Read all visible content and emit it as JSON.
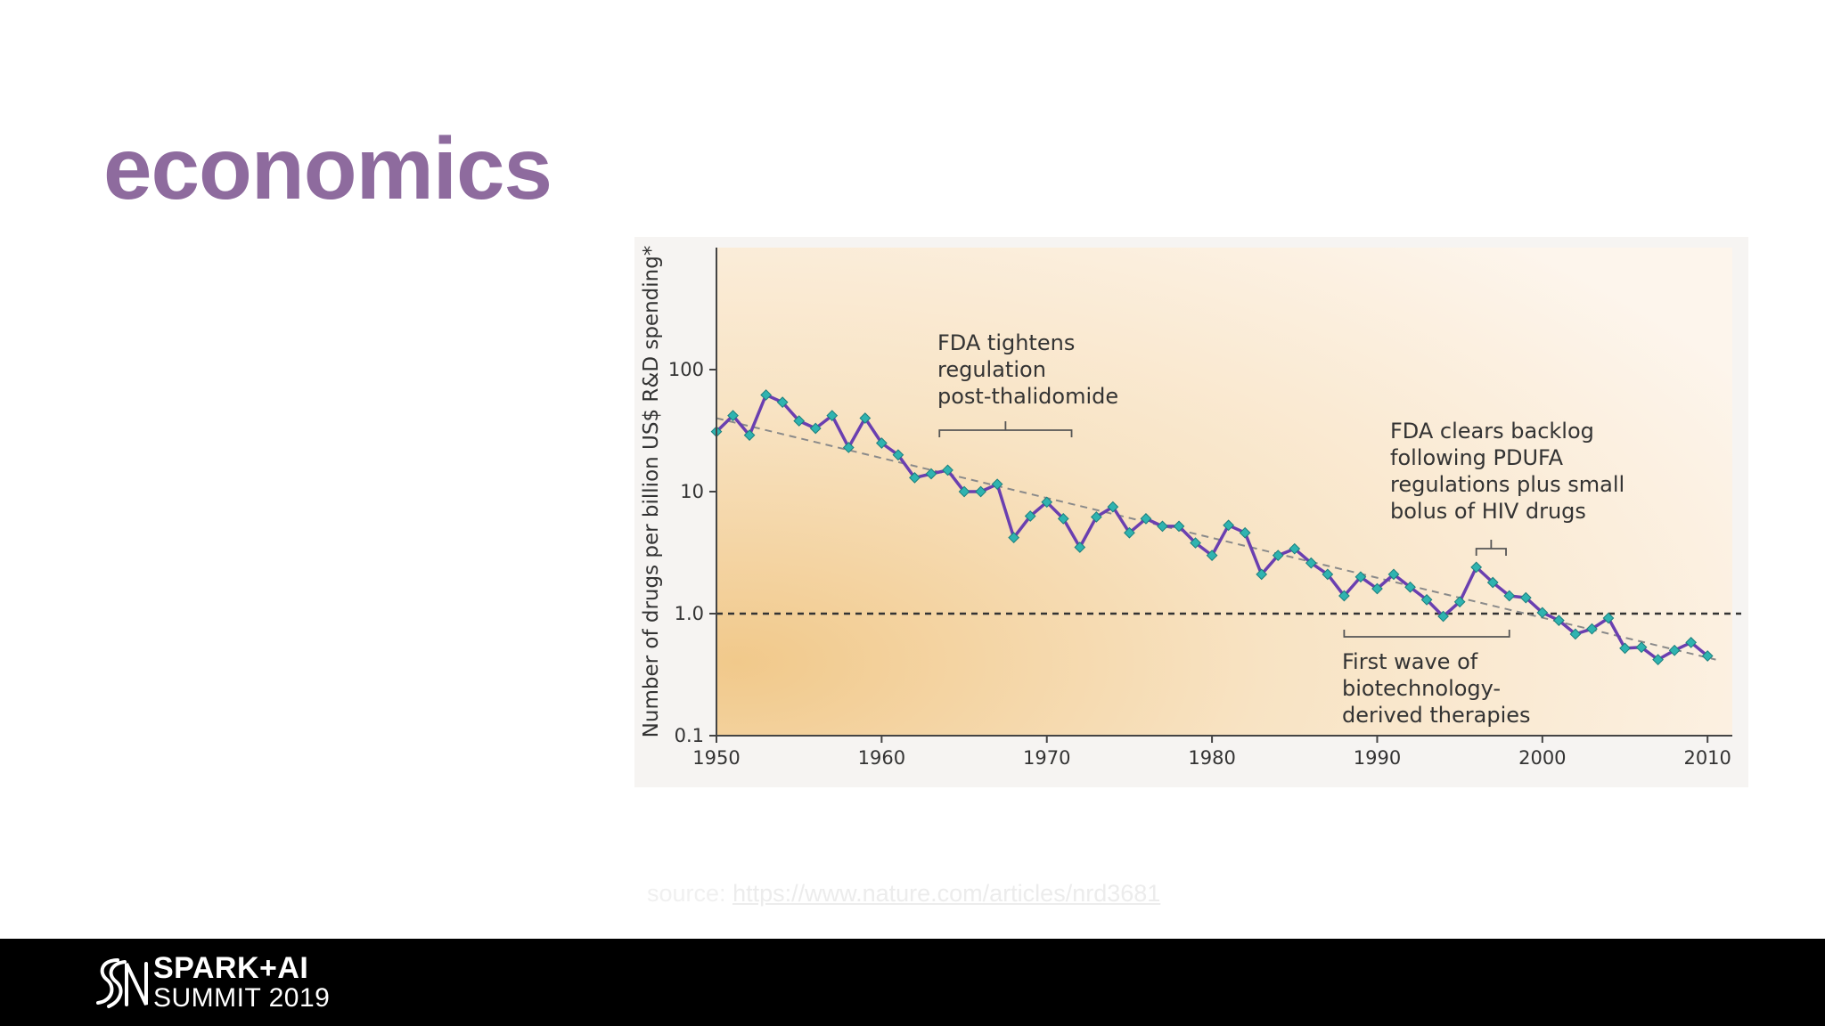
{
  "slide": {
    "title": "economics",
    "source_prefix": "source:",
    "source_url": "https://www.nature.com/articles/nrd3681"
  },
  "footer": {
    "logo_line1": "SPARK+AI",
    "logo_line2": "SUMMIT 2019"
  },
  "colors": {
    "title": "#8e6b9e",
    "series_line": "#6a3fb0",
    "marker": "#2fb3b0",
    "footer_bg": "#000000"
  },
  "chart_data": {
    "type": "line",
    "title": "",
    "xlabel": "",
    "ylabel": "Number of drugs per billion US$ R&D spending*",
    "yscale": "log",
    "ylim": [
      0.1,
      1000
    ],
    "xlim": [
      1950,
      2011.5
    ],
    "x_ticks": [
      "1950",
      "1960",
      "1970",
      "1980",
      "1990",
      "2000",
      "2010"
    ],
    "y_ticks": [
      "0.1",
      "1.0",
      "10",
      "100"
    ],
    "grid": false,
    "reference_line": {
      "y": 1.0,
      "style": "dashed"
    },
    "trend_line": {
      "x": [
        1950,
        2010.5
      ],
      "y": [
        40,
        0.42
      ],
      "style": "dashed"
    },
    "series": [
      {
        "x": [
          1950,
          1951,
          1952,
          1953,
          1954,
          1955,
          1956,
          1957,
          1958,
          1959,
          1960,
          1961,
          1962,
          1963,
          1964,
          1965,
          1966,
          1967,
          1968,
          1969,
          1970,
          1971,
          1972,
          1973,
          1974,
          1975,
          1976,
          1977,
          1978,
          1979,
          1980,
          1981,
          1982,
          1983,
          1984,
          1985,
          1986,
          1987,
          1988,
          1989,
          1990,
          1991,
          1992,
          1993,
          1994,
          1995,
          1996,
          1997,
          1998,
          1999,
          2000,
          2001,
          2002,
          2003,
          2004,
          2005,
          2006,
          2007,
          2008,
          2009,
          2010
        ],
        "y": [
          31,
          42,
          29,
          62,
          54,
          38,
          33,
          42,
          23,
          40,
          25,
          20,
          13,
          14,
          15,
          10,
          10,
          11.5,
          4.2,
          6.3,
          8.2,
          6,
          3.5,
          6.2,
          7.5,
          4.6,
          6,
          5.2,
          5.2,
          3.8,
          3,
          5.3,
          4.6,
          2.1,
          3,
          3.4,
          2.6,
          2.1,
          1.4,
          2,
          1.6,
          2.1,
          1.65,
          1.3,
          0.95,
          1.25,
          2.4,
          1.8,
          1.4,
          1.35,
          1.02,
          0.88,
          0.68,
          0.75,
          0.92,
          0.52,
          0.53,
          0.42,
          0.5,
          0.58,
          0.45
        ]
      }
    ],
    "annotations": [
      {
        "text": [
          "FDA tightens",
          "regulation",
          "post-thalidomide"
        ],
        "bracket": [
          1963.5,
          1971.5
        ]
      },
      {
        "text": [
          "FDA clears backlog",
          "following PDUFA",
          "regulations plus small",
          "bolus of HIV drugs"
        ],
        "bracket": [
          1996,
          1997.8
        ]
      },
      {
        "text": [
          "First wave of",
          "biotechnology-",
          "derived therapies"
        ],
        "bracket": [
          1988,
          1998
        ]
      }
    ]
  }
}
